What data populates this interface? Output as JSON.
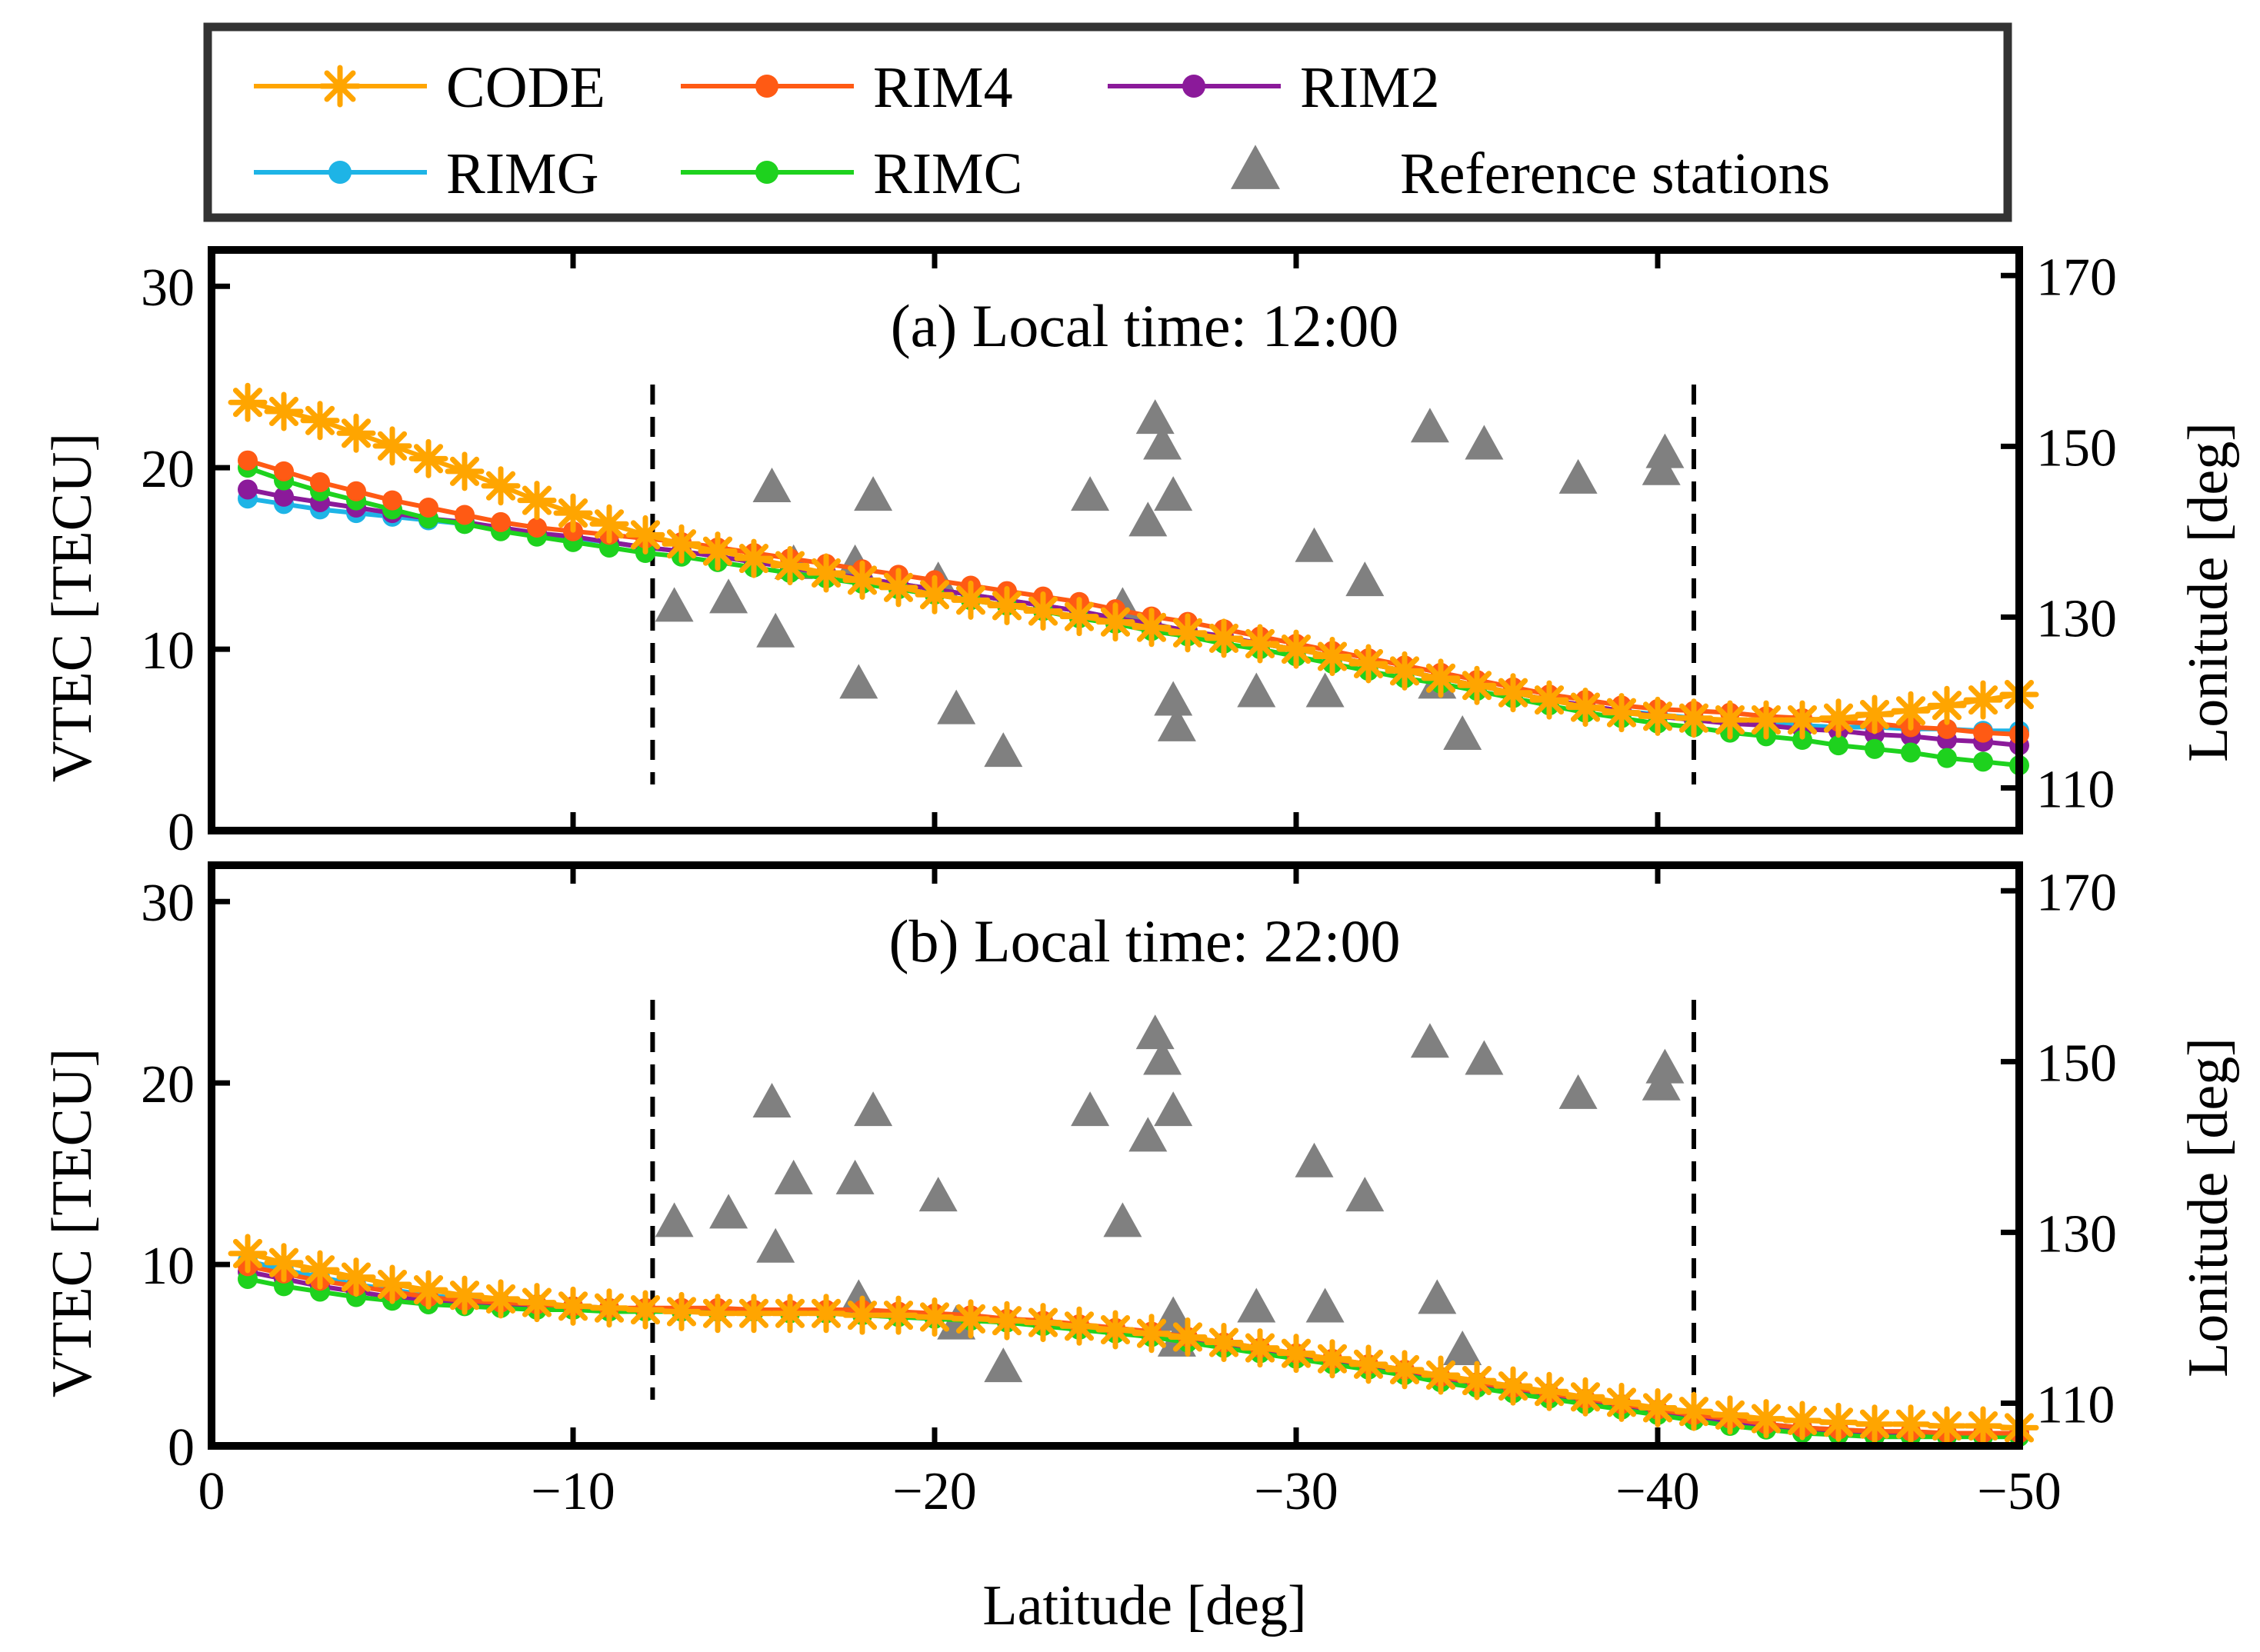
{
  "colors": {
    "CODE": "#FFA500",
    "RIM4": "#FF5A14",
    "RIM2": "#8B1A9A",
    "RIMG": "#1EB4E6",
    "RIMC": "#1ED21E",
    "reference": "#808080"
  },
  "legend": {
    "entries": [
      {
        "key": "CODE",
        "label": "CODE",
        "marker": "asterisk"
      },
      {
        "key": "RIM4",
        "label": "RIM4",
        "marker": "dot"
      },
      {
        "key": "RIM2",
        "label": "RIM2",
        "marker": "dot"
      },
      {
        "key": "RIMG",
        "label": "RIMG",
        "marker": "dot"
      },
      {
        "key": "RIMC",
        "label": "RIMC",
        "marker": "dot"
      },
      {
        "key": "reference",
        "label": "Reference stations",
        "marker": "triangle"
      }
    ]
  },
  "chart_data": [
    {
      "type": "line",
      "title": "(a) Local time: 12:00",
      "xlabel": "Latitude [deg]",
      "ylabel": "VTEC [TECU]",
      "ylabel_right": "Lonitude [deg]",
      "xlim": [
        0,
        -50
      ],
      "ylim": [
        0,
        32
      ],
      "ylim_right": [
        105,
        173
      ],
      "xticks": [
        0,
        -10,
        -20,
        -30,
        -40,
        -50
      ],
      "yticks": [
        0,
        10,
        20,
        30
      ],
      "yticks_right": [
        110,
        130,
        150,
        170
      ],
      "xtick_labels": [
        "0",
        "−10",
        "−20",
        "−30",
        "−40",
        "−50"
      ],
      "ytick_labels": [
        "0",
        "10",
        "20",
        "30"
      ],
      "ytick_labels_right": [
        "110",
        "130",
        "150",
        "170"
      ],
      "vlines": [
        -12.2,
        -41
      ],
      "x": [
        -1,
        -2,
        -3,
        -4,
        -5,
        -6,
        -7,
        -8,
        -9,
        -10,
        -11,
        -12,
        -13,
        -14,
        -15,
        -16,
        -17,
        -18,
        -19,
        -20,
        -21,
        -22,
        -23,
        -24,
        -25,
        -26,
        -27,
        -28,
        -29,
        -30,
        -31,
        -32,
        -33,
        -34,
        -35,
        -36,
        -37,
        -38,
        -39,
        -40,
        -41,
        -42,
        -43,
        -44,
        -45,
        -46,
        -47,
        -48,
        -49,
        -50
      ],
      "series": [
        {
          "name": "CODE",
          "values": [
            23.6,
            23.1,
            22.6,
            21.9,
            21.2,
            20.5,
            19.8,
            19.0,
            18.2,
            17.5,
            16.9,
            16.3,
            15.8,
            15.4,
            15.0,
            14.6,
            14.2,
            13.8,
            13.4,
            13.0,
            12.7,
            12.4,
            12.1,
            11.8,
            11.5,
            11.2,
            10.9,
            10.6,
            10.3,
            10.0,
            9.6,
            9.2,
            8.8,
            8.4,
            8.0,
            7.6,
            7.2,
            6.8,
            6.5,
            6.3,
            6.2,
            6.1,
            6.1,
            6.1,
            6.2,
            6.4,
            6.6,
            6.9,
            7.2,
            7.5
          ]
        },
        {
          "name": "RIM4",
          "values": [
            20.4,
            19.8,
            19.2,
            18.7,
            18.2,
            17.8,
            17.4,
            17.0,
            16.7,
            16.5,
            16.3,
            16.1,
            15.9,
            15.6,
            15.3,
            15.0,
            14.7,
            14.4,
            14.1,
            13.8,
            13.5,
            13.2,
            12.9,
            12.6,
            12.2,
            11.8,
            11.5,
            11.1,
            10.7,
            10.3,
            9.9,
            9.5,
            9.1,
            8.7,
            8.3,
            7.9,
            7.5,
            7.2,
            6.9,
            6.7,
            6.6,
            6.5,
            6.3,
            6.2,
            6.0,
            5.9,
            5.7,
            5.6,
            5.4,
            5.3
          ]
        },
        {
          "name": "RIM2",
          "values": [
            18.8,
            18.4,
            18.1,
            17.8,
            17.5,
            17.2,
            17.0,
            16.7,
            16.4,
            16.2,
            15.9,
            15.6,
            15.4,
            15.1,
            14.8,
            14.5,
            14.2,
            13.9,
            13.6,
            13.3,
            13.0,
            12.7,
            12.4,
            12.1,
            11.7,
            11.4,
            11.0,
            10.7,
            10.3,
            10.0,
            9.6,
            9.2,
            8.8,
            8.4,
            8.0,
            7.6,
            7.2,
            6.9,
            6.6,
            6.3,
            6.1,
            5.9,
            5.8,
            5.6,
            5.5,
            5.3,
            5.2,
            5.0,
            4.9,
            4.7
          ]
        },
        {
          "name": "RIMG",
          "values": [
            18.3,
            18.0,
            17.7,
            17.5,
            17.3,
            17.1,
            16.9,
            16.6,
            16.4,
            16.1,
            15.9,
            15.6,
            15.4,
            15.1,
            14.8,
            14.5,
            14.2,
            13.9,
            13.6,
            13.3,
            13.0,
            12.7,
            12.4,
            12.1,
            11.7,
            11.4,
            11.0,
            10.7,
            10.3,
            10.0,
            9.6,
            9.2,
            8.8,
            8.4,
            8.0,
            7.6,
            7.2,
            6.9,
            6.6,
            6.4,
            6.2,
            6.0,
            5.9,
            5.8,
            5.7,
            5.7,
            5.6,
            5.6,
            5.5,
            5.5
          ]
        },
        {
          "name": "RIMC",
          "values": [
            20.0,
            19.3,
            18.7,
            18.2,
            17.7,
            17.2,
            16.9,
            16.5,
            16.2,
            15.9,
            15.6,
            15.3,
            15.1,
            14.8,
            14.5,
            14.2,
            13.9,
            13.6,
            13.3,
            13.0,
            12.7,
            12.4,
            12.1,
            11.7,
            11.4,
            11.0,
            10.7,
            10.3,
            10.0,
            9.6,
            9.2,
            8.8,
            8.4,
            8.1,
            7.7,
            7.3,
            6.9,
            6.5,
            6.2,
            5.9,
            5.7,
            5.4,
            5.2,
            5.0,
            4.7,
            4.5,
            4.3,
            4.0,
            3.8,
            3.6
          ]
        }
      ],
      "reference_stations": {
        "lat": [
          -12.8,
          -14.3,
          -15.5,
          -15.6,
          -16.1,
          -17.8,
          -17.9,
          -18.3,
          -20.1,
          -20.6,
          -21.9,
          -24.3,
          -25.2,
          -25.9,
          -26.1,
          -26.3,
          -26.6,
          -26.6,
          -26.7,
          -28.9,
          -30.5,
          -30.8,
          -31.9,
          -33.7,
          -33.9,
          -34.6,
          -35.2,
          -37.8,
          -40.1,
          -40.2
        ],
        "lon": [
          131,
          132,
          145,
          128,
          136,
          136,
          122,
          144,
          134,
          119,
          114,
          144,
          131,
          141,
          153,
          150,
          144,
          120,
          117,
          121,
          138,
          121,
          134,
          152,
          122,
          116,
          150,
          146,
          147,
          149
        ]
      }
    },
    {
      "type": "line",
      "title": "(b) Local time: 22:00",
      "xlabel": "Latitude [deg]",
      "ylabel": "VTEC [TECU]",
      "ylabel_right": "Lonitude [deg]",
      "xlim": [
        0,
        -50
      ],
      "ylim": [
        0,
        32
      ],
      "ylim_right": [
        105,
        173
      ],
      "xticks": [
        0,
        -10,
        -20,
        -30,
        -40,
        -50
      ],
      "yticks": [
        0,
        10,
        20,
        30
      ],
      "yticks_right": [
        110,
        130,
        150,
        170
      ],
      "xtick_labels": [
        "0",
        "−10",
        "−20",
        "−30",
        "−40",
        "−50"
      ],
      "ytick_labels": [
        "0",
        "10",
        "20",
        "30"
      ],
      "ytick_labels_right": [
        "110",
        "130",
        "150",
        "170"
      ],
      "vlines": [
        -12.2,
        -41
      ],
      "x": [
        -1,
        -2,
        -3,
        -4,
        -5,
        -6,
        -7,
        -8,
        -9,
        -10,
        -11,
        -12,
        -13,
        -14,
        -15,
        -16,
        -17,
        -18,
        -19,
        -20,
        -21,
        -22,
        -23,
        -24,
        -25,
        -26,
        -27,
        -28,
        -29,
        -30,
        -31,
        -32,
        -33,
        -34,
        -35,
        -36,
        -37,
        -38,
        -39,
        -40,
        -41,
        -42,
        -43,
        -44,
        -45,
        -46,
        -47,
        -48,
        -49,
        -50
      ],
      "series": [
        {
          "name": "CODE",
          "values": [
            10.6,
            10.1,
            9.7,
            9.3,
            8.9,
            8.6,
            8.3,
            8.1,
            7.9,
            7.7,
            7.6,
            7.5,
            7.4,
            7.3,
            7.3,
            7.3,
            7.3,
            7.2,
            7.2,
            7.1,
            7.0,
            6.9,
            6.8,
            6.6,
            6.4,
            6.2,
            6.0,
            5.7,
            5.4,
            5.1,
            4.8,
            4.5,
            4.2,
            3.9,
            3.6,
            3.3,
            3.0,
            2.7,
            2.4,
            2.1,
            1.9,
            1.7,
            1.5,
            1.4,
            1.3,
            1.2,
            1.2,
            1.1,
            1.1,
            1.0
          ]
        },
        {
          "name": "RIM4",
          "values": [
            9.9,
            9.5,
            9.1,
            8.8,
            8.5,
            8.2,
            8.0,
            7.9,
            7.8,
            7.7,
            7.6,
            7.6,
            7.6,
            7.6,
            7.5,
            7.5,
            7.5,
            7.5,
            7.4,
            7.3,
            7.2,
            7.0,
            6.9,
            6.7,
            6.5,
            6.3,
            6.0,
            5.7,
            5.4,
            5.1,
            4.8,
            4.5,
            4.2,
            3.8,
            3.5,
            3.2,
            2.9,
            2.6,
            2.3,
            2.0,
            1.7,
            1.5,
            1.2,
            1.0,
            0.9,
            0.8,
            0.8,
            0.7,
            0.7,
            0.7
          ]
        },
        {
          "name": "RIM2",
          "values": [
            9.6,
            9.2,
            8.8,
            8.5,
            8.2,
            8.0,
            7.8,
            7.7,
            7.6,
            7.5,
            7.5,
            7.5,
            7.4,
            7.4,
            7.4,
            7.4,
            7.3,
            7.3,
            7.2,
            7.1,
            7.0,
            6.9,
            6.7,
            6.5,
            6.3,
            6.1,
            5.8,
            5.5,
            5.2,
            4.9,
            4.6,
            4.3,
            4.0,
            3.6,
            3.3,
            3.0,
            2.7,
            2.4,
            2.1,
            1.8,
            1.5,
            1.3,
            1.1,
            0.9,
            0.8,
            0.7,
            0.7,
            0.6,
            0.6,
            0.6
          ]
        },
        {
          "name": "RIMG",
          "values": [
            10.2,
            9.7,
            9.3,
            8.9,
            8.6,
            8.3,
            8.1,
            7.9,
            7.8,
            7.7,
            7.6,
            7.5,
            7.5,
            7.5,
            7.5,
            7.4,
            7.4,
            7.4,
            7.3,
            7.2,
            7.1,
            7.0,
            6.8,
            6.6,
            6.4,
            6.2,
            5.9,
            5.6,
            5.3,
            5.0,
            4.7,
            4.4,
            4.1,
            3.8,
            3.5,
            3.2,
            2.9,
            2.6,
            2.3,
            2.0,
            1.7,
            1.4,
            1.2,
            1.0,
            0.9,
            0.8,
            0.7,
            0.7,
            0.7,
            0.7
          ]
        },
        {
          "name": "RIMC",
          "values": [
            9.2,
            8.8,
            8.5,
            8.2,
            8.0,
            7.8,
            7.7,
            7.6,
            7.5,
            7.5,
            7.4,
            7.4,
            7.4,
            7.4,
            7.4,
            7.3,
            7.3,
            7.2,
            7.1,
            7.0,
            6.9,
            6.8,
            6.6,
            6.4,
            6.2,
            6.0,
            5.7,
            5.4,
            5.1,
            4.8,
            4.5,
            4.2,
            3.9,
            3.5,
            3.2,
            2.9,
            2.6,
            2.3,
            2.0,
            1.7,
            1.4,
            1.1,
            0.9,
            0.7,
            0.6,
            0.5,
            0.5,
            0.5,
            0.5,
            0.5
          ]
        }
      ],
      "reference_stations": {
        "lat": [
          -12.8,
          -14.3,
          -15.5,
          -15.6,
          -16.1,
          -17.8,
          -17.9,
          -18.3,
          -20.1,
          -20.6,
          -21.9,
          -24.3,
          -25.2,
          -25.9,
          -26.1,
          -26.3,
          -26.6,
          -26.6,
          -26.7,
          -28.9,
          -30.5,
          -30.8,
          -31.9,
          -33.7,
          -33.9,
          -34.6,
          -35.2,
          -37.8,
          -40.1,
          -40.2
        ],
        "lon": [
          131,
          132,
          145,
          128,
          136,
          136,
          122,
          144,
          134,
          119,
          114,
          144,
          131,
          141,
          153,
          150,
          144,
          120,
          117,
          121,
          138,
          121,
          134,
          152,
          122,
          116,
          150,
          146,
          147,
          149
        ]
      }
    }
  ]
}
